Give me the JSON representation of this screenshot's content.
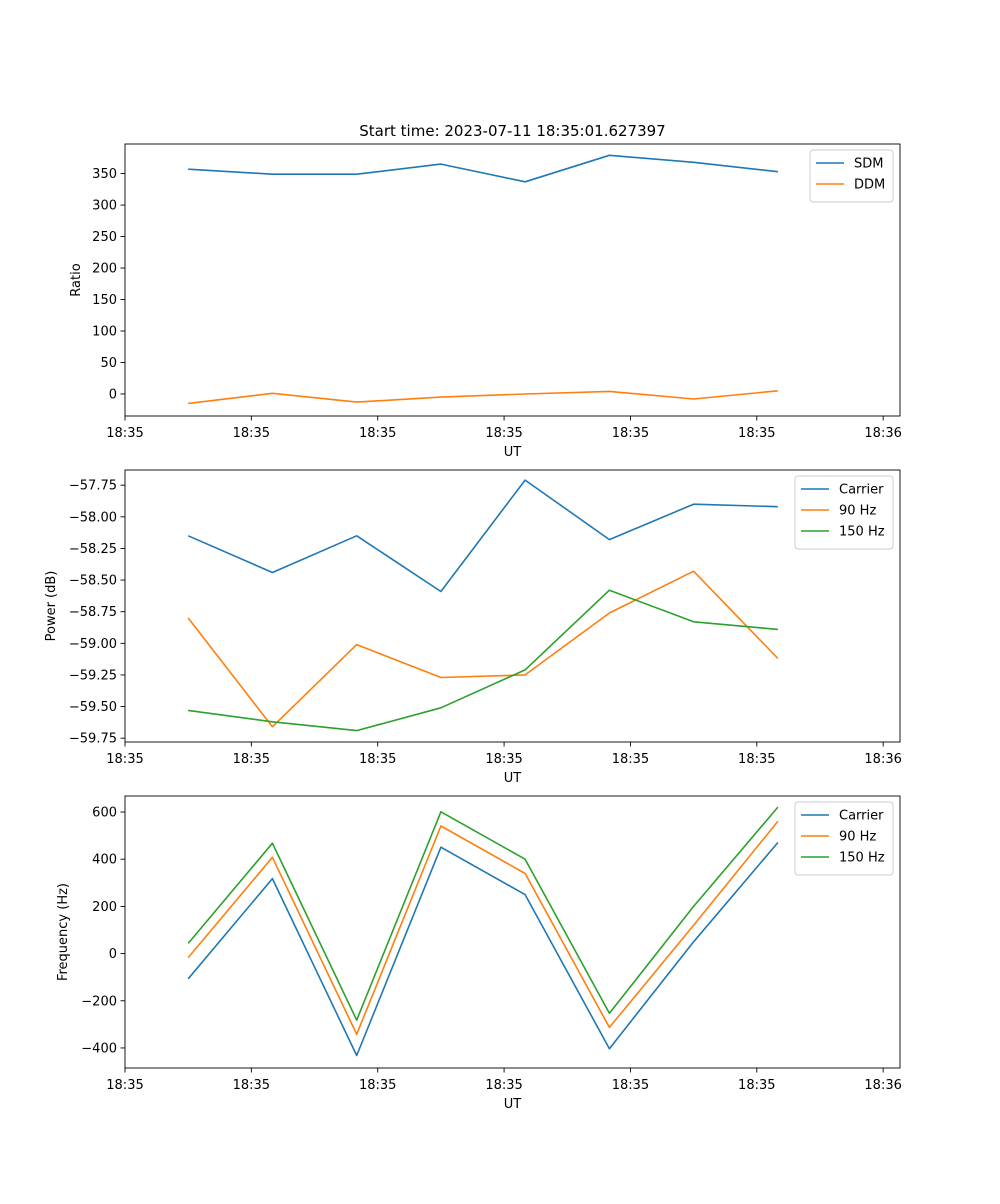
{
  "figure_title": "Start time: 2023-07-11 18:35:01.627397",
  "colors": {
    "blue": "#1f77b4",
    "orange": "#ff7f0e",
    "green": "#2ca02c"
  },
  "chart_data": [
    {
      "type": "line",
      "title": "Start time: 2023-07-11 18:35:01.627397",
      "xlabel": "UT",
      "ylabel": "Ratio",
      "x_index": [
        1,
        2,
        3,
        4,
        5,
        6,
        7,
        8
      ],
      "xlim": [
        0.25,
        9.45
      ],
      "xticks": [
        0.25,
        1.75,
        3.25,
        4.75,
        6.25,
        7.75,
        9.25
      ],
      "xtick_labels": [
        "18:35",
        "18:35",
        "18:35",
        "18:35",
        "18:35",
        "18:35",
        "18:36"
      ],
      "ylim": [
        -35,
        397
      ],
      "yticks": [
        0,
        50,
        100,
        150,
        200,
        250,
        300,
        350
      ],
      "ytick_labels": [
        "0",
        "50",
        "100",
        "150",
        "200",
        "250",
        "300",
        "350"
      ],
      "legend_position": "top-right",
      "series": [
        {
          "name": "SDM",
          "color": "#1f77b4",
          "values": [
            357,
            349,
            349,
            365,
            337,
            379,
            368,
            353
          ]
        },
        {
          "name": "DDM",
          "color": "#ff7f0e",
          "values": [
            -15,
            1,
            -13,
            -5,
            0,
            4,
            -8,
            5
          ]
        }
      ]
    },
    {
      "type": "line",
      "title": "",
      "xlabel": "UT",
      "ylabel": "Power (dB)",
      "x_index": [
        1,
        2,
        3,
        4,
        5,
        6,
        7,
        8
      ],
      "xlim": [
        0.25,
        9.45
      ],
      "xticks": [
        0.25,
        1.75,
        3.25,
        4.75,
        6.25,
        7.75,
        9.25
      ],
      "xtick_labels": [
        "18:35",
        "18:35",
        "18:35",
        "18:35",
        "18:35",
        "18:35",
        "18:36"
      ],
      "ylim": [
        -59.78,
        -57.63
      ],
      "yticks": [
        -59.75,
        -59.5,
        -59.25,
        -59.0,
        -58.75,
        -58.5,
        -58.25,
        -58.0,
        -57.75
      ],
      "ytick_labels": [
        "−59.75",
        "−59.50",
        "−59.25",
        "−59.00",
        "−58.75",
        "−58.50",
        "−58.25",
        "−58.00",
        "−57.75"
      ],
      "legend_position": "top-right",
      "series": [
        {
          "name": "Carrier",
          "color": "#1f77b4",
          "values": [
            -58.15,
            -58.44,
            -58.15,
            -58.59,
            -57.71,
            -58.18,
            -57.9,
            -57.92
          ]
        },
        {
          "name": "90 Hz",
          "color": "#ff7f0e",
          "values": [
            -58.8,
            -59.66,
            -59.01,
            -59.27,
            -59.25,
            -58.76,
            -58.43,
            -59.12
          ]
        },
        {
          "name": "150 Hz",
          "color": "#2ca02c",
          "values": [
            -59.53,
            -59.62,
            -59.69,
            -59.51,
            -59.21,
            -58.58,
            -58.83,
            -58.89
          ]
        }
      ]
    },
    {
      "type": "line",
      "title": "",
      "xlabel": "UT",
      "ylabel": "Frequency (Hz)",
      "x_index": [
        1,
        2,
        3,
        4,
        5,
        6,
        7,
        8
      ],
      "xlim": [
        0.25,
        9.45
      ],
      "xticks": [
        0.25,
        1.75,
        3.25,
        4.75,
        6.25,
        7.75,
        9.25
      ],
      "xtick_labels": [
        "18:35",
        "18:35",
        "18:35",
        "18:35",
        "18:35",
        "18:35",
        "18:36"
      ],
      "ylim": [
        -485,
        668
      ],
      "yticks": [
        -400,
        -200,
        0,
        200,
        400,
        600
      ],
      "ytick_labels": [
        "−400",
        "−200",
        "0",
        "200",
        "400",
        "600"
      ],
      "legend_position": "top-right",
      "series": [
        {
          "name": "Carrier",
          "color": "#1f77b4",
          "values": [
            -107,
            318,
            -432,
            451,
            250,
            -403,
            50,
            471
          ]
        },
        {
          "name": "90 Hz",
          "color": "#ff7f0e",
          "values": [
            -17,
            408,
            -342,
            541,
            340,
            -313,
            120,
            561
          ]
        },
        {
          "name": "150 Hz",
          "color": "#2ca02c",
          "values": [
            43,
            468,
            -282,
            601,
            400,
            -253,
            200,
            621
          ]
        }
      ]
    }
  ]
}
